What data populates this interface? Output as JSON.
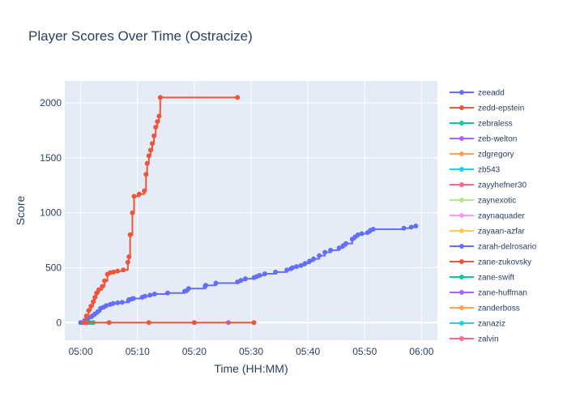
{
  "chart_data": {
    "type": "line",
    "title": "Player Scores Over Time (Ostracize)",
    "xlabel": "Time (HH:MM)",
    "ylabel": "Score",
    "x_ticks": [
      "05:00",
      "05:10",
      "05:20",
      "05:30",
      "05:40",
      "05:50",
      "06:00"
    ],
    "y_ticks": [
      0,
      500,
      1000,
      1500,
      2000
    ],
    "xlim_minutes": [
      -2.8,
      62.8
    ],
    "ylim": [
      -160,
      2200
    ],
    "grid": true,
    "legend_position": "right",
    "series": [
      {
        "name": "zeeadd",
        "color": "#636efa",
        "x": [
          0,
          0.7,
          1.3,
          2,
          2.5,
          3,
          3.5,
          4,
          4.5,
          5.2,
          5.7,
          6.5,
          7.3,
          8.4,
          8.5,
          9,
          9.3,
          10.8,
          11.3,
          12.2,
          13,
          15.3,
          18.3,
          18.6,
          19,
          21.9,
          22,
          23.8,
          27.6,
          28.2,
          29,
          30.5,
          31,
          31.5,
          32.4,
          34.3,
          36.3,
          37,
          37.3,
          38,
          38.8,
          39.5,
          40.3,
          41,
          42,
          43,
          44,
          45.5,
          46.2,
          46.7,
          47.8,
          48.3,
          48.8,
          49.5,
          50.5,
          51,
          51.5,
          56.9,
          58.2,
          59
        ],
        "y": [
          0,
          20,
          40,
          60,
          80,
          100,
          130,
          140,
          155,
          165,
          175,
          180,
          185,
          200,
          210,
          215,
          220,
          230,
          240,
          250,
          260,
          270,
          285,
          290,
          310,
          330,
          340,
          360,
          370,
          385,
          400,
          410,
          420,
          430,
          445,
          460,
          480,
          490,
          500,
          510,
          520,
          540,
          560,
          580,
          610,
          640,
          660,
          680,
          700,
          720,
          760,
          780,
          800,
          810,
          820,
          840,
          850,
          860,
          870,
          880
        ]
      },
      {
        "name": "zedd-epstein",
        "color": "#ef553b",
        "x": [
          0.5,
          1,
          1.4,
          1.8,
          2.2,
          2.5,
          2.8,
          3.2,
          3.8,
          4.2,
          4.7,
          5.2,
          5.8,
          6.5,
          7.5,
          8.3,
          8.5,
          8.7,
          9.1,
          9.4,
          10.3,
          11.2,
          11.5,
          11.7,
          12,
          12.3,
          12.6,
          12.9,
          13.2,
          13.5,
          13.8,
          14,
          27.6
        ],
        "y": [
          0,
          60,
          110,
          150,
          190,
          230,
          270,
          300,
          330,
          380,
          440,
          455,
          460,
          470,
          480,
          550,
          600,
          800,
          1000,
          1150,
          1170,
          1200,
          1350,
          1450,
          1520,
          1570,
          1630,
          1700,
          1780,
          1830,
          1880,
          2050,
          2050
        ]
      },
      {
        "name": "zebraless",
        "color": "#00cc96",
        "x": [
          1.2,
          1.6,
          2.2
        ],
        "y": [
          0,
          0,
          0
        ]
      },
      {
        "name": "zeb-welton",
        "color": "#ab63fa",
        "x": [
          26
        ],
        "y": [
          0
        ]
      },
      {
        "name": "zdgregory",
        "color": "#ffa15a",
        "x": [],
        "y": []
      },
      {
        "name": "zb543",
        "color": "#19d3f3",
        "x": [],
        "y": []
      },
      {
        "name": "zayyhefner30",
        "color": "#ff6692",
        "x": [],
        "y": []
      },
      {
        "name": "zaynexotic",
        "color": "#b6e880",
        "x": [],
        "y": []
      },
      {
        "name": "zaynaquader",
        "color": "#ff97ff",
        "x": [],
        "y": []
      },
      {
        "name": "zayaan-azfar",
        "color": "#fecb52",
        "x": [],
        "y": []
      },
      {
        "name": "zarah-delrosario",
        "color": "#636efa",
        "x": [],
        "y": []
      },
      {
        "name": "zane-zukovsky",
        "color": "#ef553b",
        "x": [
          1,
          5,
          12,
          20,
          30.5
        ],
        "y": [
          0,
          0,
          0,
          0,
          0
        ]
      },
      {
        "name": "zane-swift",
        "color": "#00cc96",
        "x": [],
        "y": []
      },
      {
        "name": "zane-huffman",
        "color": "#ab63fa",
        "x": [],
        "y": []
      },
      {
        "name": "zanderboss",
        "color": "#ffa15a",
        "x": [],
        "y": []
      },
      {
        "name": "zanaziz",
        "color": "#19d3f3",
        "x": [],
        "y": []
      },
      {
        "name": "zalvin",
        "color": "#ff6692",
        "x": [],
        "y": []
      }
    ]
  }
}
